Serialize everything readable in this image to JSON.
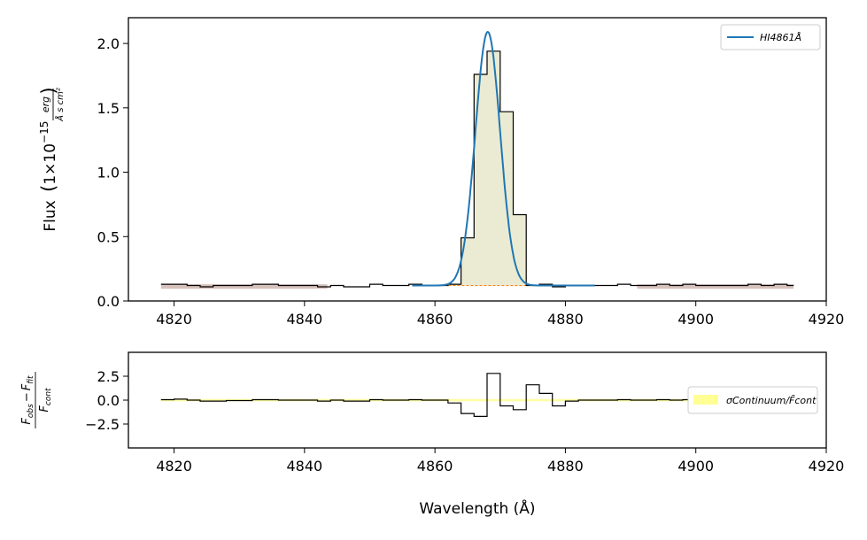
{
  "chart_data": [
    {
      "type": "line",
      "panel": "spectrum",
      "title": "",
      "xlabel": "",
      "ylabel": "Flux (1×10⁻¹⁵ erg/(Å s cm²))",
      "ylabel_parts": {
        "prefix": "Flux",
        "unit_main": "1×10",
        "unit_exp": "−15",
        "unit_frac_num": "erg",
        "unit_frac_den": "Å s cm²"
      },
      "xlim": [
        4813,
        4920
      ],
      "ylim": [
        0.0,
        2.2
      ],
      "xticks": [
        "4820",
        "4840",
        "4860",
        "4880",
        "4900",
        "4920"
      ],
      "xtick_values": [
        4820,
        4840,
        4860,
        4880,
        4900,
        4920
      ],
      "yticks": [
        "0.0",
        "0.5",
        "1.0",
        "1.5",
        "2.0"
      ],
      "ytick_values": [
        0.0,
        0.5,
        1.0,
        1.5,
        2.0
      ],
      "legend": {
        "position": "top-right",
        "entries": [
          {
            "label": "HI4861Å",
            "color": "#1f77b4"
          }
        ]
      },
      "observed_step": {
        "name": "observed flux",
        "color": "#000000",
        "x": [
          4818,
          4820,
          4822,
          4824,
          4826,
          4828,
          4830,
          4832,
          4834,
          4836,
          4838,
          4840,
          4842,
          4844,
          4846,
          4848,
          4850,
          4852,
          4854,
          4856,
          4858,
          4860,
          4862,
          4864,
          4866,
          4868,
          4870,
          4872,
          4874,
          4876,
          4878,
          4880,
          4882,
          4884,
          4886,
          4888,
          4890,
          4892,
          4894,
          4896,
          4898,
          4900,
          4902,
          4904,
          4906,
          4908,
          4910,
          4912,
          4914
        ],
        "y": [
          0.13,
          0.13,
          0.12,
          0.11,
          0.12,
          0.12,
          0.12,
          0.13,
          0.13,
          0.12,
          0.12,
          0.12,
          0.11,
          0.12,
          0.11,
          0.11,
          0.13,
          0.12,
          0.12,
          0.13,
          0.12,
          0.12,
          0.13,
          0.49,
          1.76,
          1.94,
          1.47,
          0.67,
          0.12,
          0.13,
          0.11,
          0.12,
          0.12,
          0.12,
          0.12,
          0.13,
          0.12,
          0.12,
          0.13,
          0.12,
          0.13,
          0.12,
          0.12,
          0.12,
          0.12,
          0.13,
          0.12,
          0.13,
          0.12
        ],
        "x_end": 4915
      },
      "gaussian_fit": {
        "name": "HI4861Å",
        "color": "#1f77b4",
        "center": 4868.1,
        "amplitude": 1.97,
        "sigma": 1.9,
        "continuum": 0.12,
        "x_range": [
          4856.5,
          4884.5
        ]
      },
      "line_region": {
        "x_range": [
          4862,
          4874
        ],
        "color": "#d8d8a8"
      },
      "continuum_regions": [
        {
          "x_range": [
            4818,
            4843.5
          ],
          "color": "#c8a8a0"
        },
        {
          "x_range": [
            4891,
            4915
          ],
          "color": "#c8a8a0"
        }
      ],
      "continuum_level": {
        "value": 0.12,
        "x_range": [
          4858,
          4878
        ],
        "color": "#ff7f0e",
        "style": "dashed"
      }
    },
    {
      "type": "line",
      "panel": "residual",
      "title": "",
      "xlabel": "Wavelength (Å)",
      "ylabel": "(F_obs − F_fit) / F_cont",
      "ylabel_parts": {
        "numerator_a": "F",
        "numerator_a_sub": "obs",
        "minus": "−",
        "numerator_b": "F",
        "numerator_b_sub": "fit",
        "denominator": "F",
        "denominator_sub": "cont"
      },
      "xlim": [
        4813,
        4920
      ],
      "ylim": [
        -5.0,
        5.0
      ],
      "xticks": [
        "4820",
        "4840",
        "4860",
        "4880",
        "4900",
        "4920"
      ],
      "xtick_values": [
        4820,
        4840,
        4860,
        4880,
        4900,
        4920
      ],
      "yticks": [
        "2.5",
        "0.0",
        "−2.5"
      ],
      "ytick_values": [
        2.5,
        0.0,
        -2.5
      ],
      "legend": {
        "position": "right",
        "entries": [
          {
            "label": "σContinuum/F̄cont",
            "color": "#ffff66"
          }
        ]
      },
      "residual_step": {
        "name": "residual",
        "color": "#000000",
        "x": [
          4818,
          4820,
          4822,
          4824,
          4826,
          4828,
          4830,
          4832,
          4834,
          4836,
          4838,
          4840,
          4842,
          4844,
          4846,
          4848,
          4850,
          4852,
          4854,
          4856,
          4858,
          4860,
          4862,
          4864,
          4866,
          4868,
          4870,
          4872,
          4874,
          4876,
          4878,
          4880,
          4882,
          4884,
          4886,
          4888,
          4890,
          4892,
          4894,
          4896,
          4898,
          4900,
          4902,
          4904,
          4906,
          4908,
          4910,
          4912,
          4914
        ],
        "y": [
          0.05,
          0.1,
          0.0,
          -0.1,
          -0.1,
          -0.05,
          -0.05,
          0.05,
          0.05,
          0.0,
          0.0,
          0.0,
          -0.1,
          0.0,
          -0.1,
          -0.1,
          0.05,
          0.0,
          0.0,
          0.05,
          0.0,
          0.0,
          -0.3,
          -1.4,
          -1.7,
          2.8,
          -0.6,
          -1.0,
          1.6,
          0.7,
          -0.6,
          -0.1,
          0.0,
          0.0,
          0.0,
          0.05,
          0.0,
          0.0,
          0.05,
          0.0,
          0.05,
          0.0,
          0.0,
          0.0,
          0.0,
          0.05,
          0.0,
          0.05,
          0.0
        ],
        "x_end": 4915
      },
      "sigma_band": {
        "value": 0.12,
        "x_range": [
          4818,
          4915
        ],
        "color": "#ffff66"
      }
    }
  ]
}
